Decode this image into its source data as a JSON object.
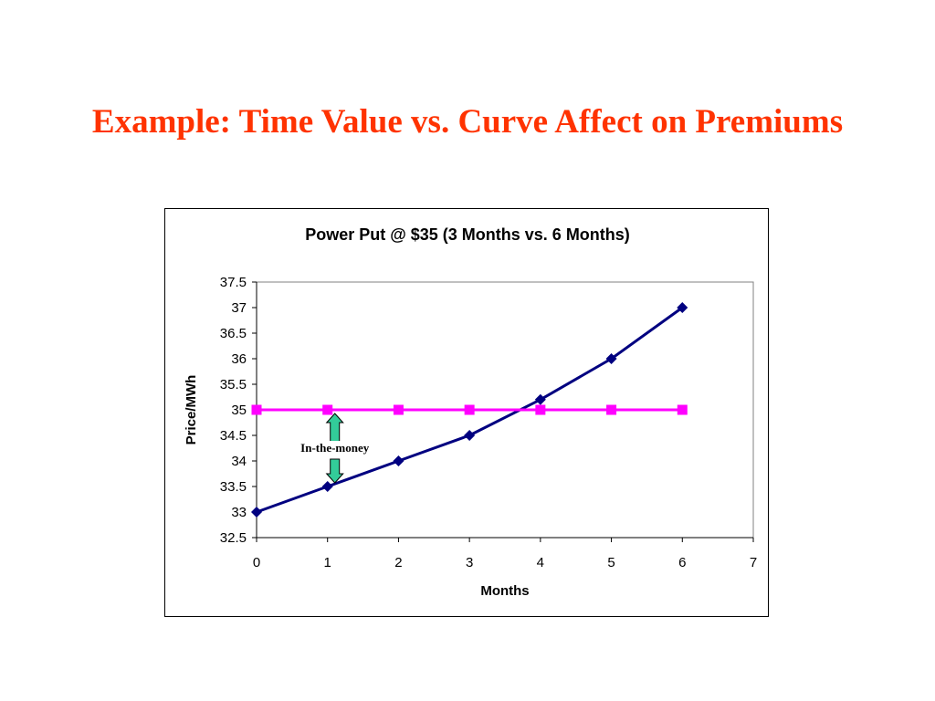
{
  "slide": {
    "title": "Example:  Time Value vs. Curve Affect on Premiums"
  },
  "colors": {
    "title": "#ff3300",
    "curve": "#000080",
    "strike": "#ff00ff",
    "arrow": "#33cc99"
  },
  "chart_data": {
    "type": "line",
    "title": "Power Put @ $35 (3 Months vs. 6 Months)",
    "xlabel": "Months",
    "ylabel": "Price/MWh",
    "xlim": [
      0,
      7
    ],
    "ylim": [
      32.5,
      37.5
    ],
    "x_ticks": [
      "0",
      "1",
      "2",
      "3",
      "4",
      "5",
      "6",
      "7"
    ],
    "y_ticks": [
      "32.5",
      "33",
      "33.5",
      "34",
      "34.5",
      "35",
      "35.5",
      "36",
      "36.5",
      "37",
      "37.5"
    ],
    "grid": false,
    "legend": "none",
    "series": [
      {
        "marker": "diamond",
        "color": "#000080",
        "x": [
          0,
          1,
          2,
          3,
          4,
          5,
          6
        ],
        "y": [
          33,
          33.5,
          34,
          34.5,
          35.2,
          36,
          37
        ]
      },
      {
        "marker": "square",
        "color": "#ff00ff",
        "x": [
          0,
          1,
          2,
          3,
          4,
          5,
          6
        ],
        "y": [
          35,
          35,
          35,
          35,
          35,
          35,
          35
        ]
      }
    ],
    "annotations": [
      {
        "text": "In-the-money",
        "x": 1,
        "from": 33.5,
        "to": 35
      }
    ]
  }
}
